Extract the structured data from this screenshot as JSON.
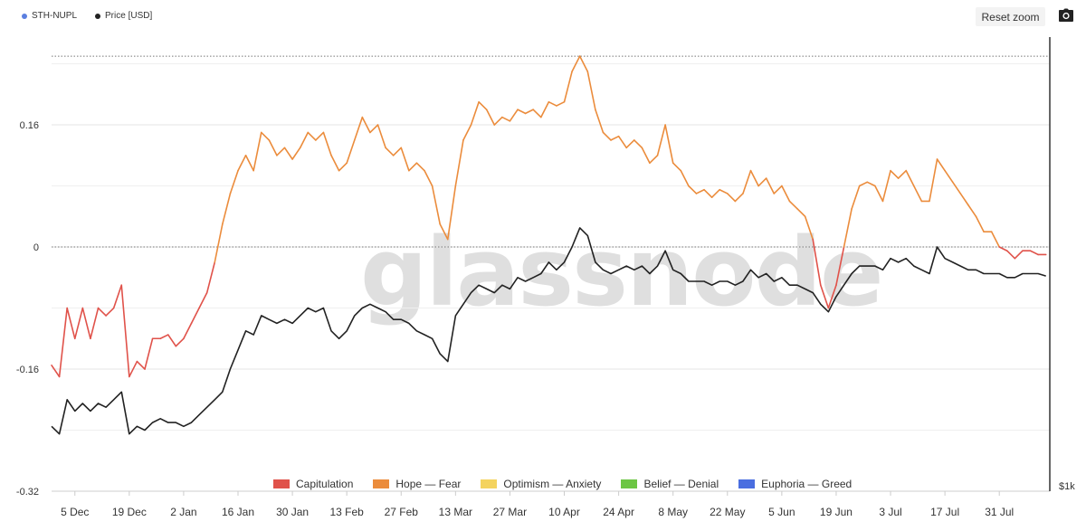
{
  "legend": [
    {
      "label": "STH-NUPL",
      "color": "#5b7fe0"
    },
    {
      "label": "Price [USD]",
      "color": "#222222"
    }
  ],
  "toolbar": {
    "reset_label": "Reset zoom",
    "camera_icon": "camera-icon"
  },
  "watermark": "glassnode",
  "chart_data": {
    "type": "line",
    "y_left": {
      "ticks": [
        "0.16",
        "0",
        "-0.16",
        "-0.32"
      ],
      "tick_values": [
        0.16,
        0,
        -0.16,
        -0.32
      ],
      "range": [
        -0.32,
        0.275
      ]
    },
    "y_right": {
      "ticks": [
        "$1k"
      ]
    },
    "x_ticks": [
      "5 Dec",
      "19 Dec",
      "2 Jan",
      "16 Jan",
      "30 Jan",
      "13 Feb",
      "27 Feb",
      "13 Mar",
      "27 Mar",
      "10 Apr",
      "24 Apr",
      "8 May",
      "22 May",
      "5 Jun",
      "19 Jun",
      "3 Jul",
      "17 Jul",
      "31 Jul"
    ],
    "x_start": "2022-11-29",
    "x_end": "2023-08-13",
    "grid": true,
    "phases": [
      {
        "name": "Capitulation",
        "color": "#e0524a"
      },
      {
        "name": "Hope — Fear",
        "color": "#eb8c3c"
      },
      {
        "name": "Optimism — Anxiety",
        "color": "#f4d35e"
      },
      {
        "name": "Belief — Denial",
        "color": "#6cc644"
      },
      {
        "name": "Euphoria — Greed",
        "color": "#4a6ee0"
      }
    ],
    "series": [
      {
        "name": "STH-NUPL",
        "values": [
          [
            "2022-11-29",
            -0.155
          ],
          [
            "2022-12-01",
            -0.17
          ],
          [
            "2022-12-03",
            -0.08
          ],
          [
            "2022-12-05",
            -0.12
          ],
          [
            "2022-12-07",
            -0.08
          ],
          [
            "2022-12-09",
            -0.12
          ],
          [
            "2022-12-11",
            -0.08
          ],
          [
            "2022-12-13",
            -0.09
          ],
          [
            "2022-12-15",
            -0.08
          ],
          [
            "2022-12-17",
            -0.05
          ],
          [
            "2022-12-19",
            -0.17
          ],
          [
            "2022-12-21",
            -0.15
          ],
          [
            "2022-12-23",
            -0.16
          ],
          [
            "2022-12-25",
            -0.12
          ],
          [
            "2022-12-27",
            -0.12
          ],
          [
            "2022-12-29",
            -0.115
          ],
          [
            "2022-12-31",
            -0.13
          ],
          [
            "2023-01-02",
            -0.12
          ],
          [
            "2023-01-04",
            -0.1
          ],
          [
            "2023-01-06",
            -0.08
          ],
          [
            "2023-01-08",
            -0.06
          ],
          [
            "2023-01-10",
            -0.02
          ],
          [
            "2023-01-12",
            0.03
          ],
          [
            "2023-01-14",
            0.07
          ],
          [
            "2023-01-16",
            0.1
          ],
          [
            "2023-01-18",
            0.12
          ],
          [
            "2023-01-20",
            0.1
          ],
          [
            "2023-01-22",
            0.15
          ],
          [
            "2023-01-24",
            0.14
          ],
          [
            "2023-01-26",
            0.12
          ],
          [
            "2023-01-28",
            0.13
          ],
          [
            "2023-01-30",
            0.115
          ],
          [
            "2023-02-01",
            0.13
          ],
          [
            "2023-02-03",
            0.15
          ],
          [
            "2023-02-05",
            0.14
          ],
          [
            "2023-02-07",
            0.15
          ],
          [
            "2023-02-09",
            0.12
          ],
          [
            "2023-02-11",
            0.1
          ],
          [
            "2023-02-13",
            0.11
          ],
          [
            "2023-02-15",
            0.14
          ],
          [
            "2023-02-17",
            0.17
          ],
          [
            "2023-02-19",
            0.15
          ],
          [
            "2023-02-21",
            0.16
          ],
          [
            "2023-02-23",
            0.13
          ],
          [
            "2023-02-25",
            0.12
          ],
          [
            "2023-02-27",
            0.13
          ],
          [
            "2023-03-01",
            0.1
          ],
          [
            "2023-03-03",
            0.11
          ],
          [
            "2023-03-05",
            0.1
          ],
          [
            "2023-03-07",
            0.08
          ],
          [
            "2023-03-09",
            0.03
          ],
          [
            "2023-03-11",
            0.01
          ],
          [
            "2023-03-13",
            0.08
          ],
          [
            "2023-03-15",
            0.14
          ],
          [
            "2023-03-17",
            0.16
          ],
          [
            "2023-03-19",
            0.19
          ],
          [
            "2023-03-21",
            0.18
          ],
          [
            "2023-03-23",
            0.16
          ],
          [
            "2023-03-25",
            0.17
          ],
          [
            "2023-03-27",
            0.165
          ],
          [
            "2023-03-29",
            0.18
          ],
          [
            "2023-03-31",
            0.175
          ],
          [
            "2023-04-02",
            0.18
          ],
          [
            "2023-04-04",
            0.17
          ],
          [
            "2023-04-06",
            0.19
          ],
          [
            "2023-04-08",
            0.185
          ],
          [
            "2023-04-10",
            0.19
          ],
          [
            "2023-04-12",
            0.23
          ],
          [
            "2023-04-14",
            0.25
          ],
          [
            "2023-04-16",
            0.23
          ],
          [
            "2023-04-18",
            0.18
          ],
          [
            "2023-04-20",
            0.15
          ],
          [
            "2023-04-22",
            0.14
          ],
          [
            "2023-04-24",
            0.145
          ],
          [
            "2023-04-26",
            0.13
          ],
          [
            "2023-04-28",
            0.14
          ],
          [
            "2023-04-30",
            0.13
          ],
          [
            "2023-05-02",
            0.11
          ],
          [
            "2023-05-04",
            0.12
          ],
          [
            "2023-05-06",
            0.16
          ],
          [
            "2023-05-08",
            0.11
          ],
          [
            "2023-05-10",
            0.1
          ],
          [
            "2023-05-12",
            0.08
          ],
          [
            "2023-05-14",
            0.07
          ],
          [
            "2023-05-16",
            0.075
          ],
          [
            "2023-05-18",
            0.065
          ],
          [
            "2023-05-20",
            0.075
          ],
          [
            "2023-05-22",
            0.07
          ],
          [
            "2023-05-24",
            0.06
          ],
          [
            "2023-05-26",
            0.07
          ],
          [
            "2023-05-28",
            0.1
          ],
          [
            "2023-05-30",
            0.08
          ],
          [
            "2023-06-01",
            0.09
          ],
          [
            "2023-06-03",
            0.07
          ],
          [
            "2023-06-05",
            0.08
          ],
          [
            "2023-06-07",
            0.06
          ],
          [
            "2023-06-09",
            0.05
          ],
          [
            "2023-06-11",
            0.04
          ],
          [
            "2023-06-13",
            0.01
          ],
          [
            "2023-06-15",
            -0.05
          ],
          [
            "2023-06-17",
            -0.08
          ],
          [
            "2023-06-19",
            -0.05
          ],
          [
            "2023-06-21",
            0.0
          ],
          [
            "2023-06-23",
            0.05
          ],
          [
            "2023-06-25",
            0.08
          ],
          [
            "2023-06-27",
            0.085
          ],
          [
            "2023-06-29",
            0.08
          ],
          [
            "2023-07-01",
            0.06
          ],
          [
            "2023-07-03",
            0.1
          ],
          [
            "2023-07-05",
            0.09
          ],
          [
            "2023-07-07",
            0.1
          ],
          [
            "2023-07-09",
            0.08
          ],
          [
            "2023-07-11",
            0.06
          ],
          [
            "2023-07-13",
            0.06
          ],
          [
            "2023-07-15",
            0.115
          ],
          [
            "2023-07-17",
            0.1
          ],
          [
            "2023-07-19",
            0.085
          ],
          [
            "2023-07-21",
            0.07
          ],
          [
            "2023-07-23",
            0.055
          ],
          [
            "2023-07-25",
            0.04
          ],
          [
            "2023-07-27",
            0.02
          ],
          [
            "2023-07-29",
            0.02
          ],
          [
            "2023-07-31",
            0.0
          ],
          [
            "2023-08-02",
            -0.005
          ],
          [
            "2023-08-04",
            -0.015
          ],
          [
            "2023-08-06",
            -0.005
          ],
          [
            "2023-08-08",
            -0.005
          ],
          [
            "2023-08-10",
            -0.01
          ],
          [
            "2023-08-12",
            -0.01
          ]
        ]
      },
      {
        "name": "Price [USD]",
        "values": [
          [
            "2022-11-29",
            -0.235
          ],
          [
            "2022-12-01",
            -0.245
          ],
          [
            "2022-12-03",
            -0.2
          ],
          [
            "2022-12-05",
            -0.215
          ],
          [
            "2022-12-07",
            -0.205
          ],
          [
            "2022-12-09",
            -0.215
          ],
          [
            "2022-12-11",
            -0.205
          ],
          [
            "2022-12-13",
            -0.21
          ],
          [
            "2022-12-15",
            -0.2
          ],
          [
            "2022-12-17",
            -0.19
          ],
          [
            "2022-12-19",
            -0.245
          ],
          [
            "2022-12-21",
            -0.235
          ],
          [
            "2022-12-23",
            -0.24
          ],
          [
            "2022-12-25",
            -0.23
          ],
          [
            "2022-12-27",
            -0.225
          ],
          [
            "2022-12-29",
            -0.23
          ],
          [
            "2022-12-31",
            -0.23
          ],
          [
            "2023-01-02",
            -0.235
          ],
          [
            "2023-01-04",
            -0.23
          ],
          [
            "2023-01-06",
            -0.22
          ],
          [
            "2023-01-08",
            -0.21
          ],
          [
            "2023-01-10",
            -0.2
          ],
          [
            "2023-01-12",
            -0.19
          ],
          [
            "2023-01-14",
            -0.16
          ],
          [
            "2023-01-16",
            -0.135
          ],
          [
            "2023-01-18",
            -0.11
          ],
          [
            "2023-01-20",
            -0.115
          ],
          [
            "2023-01-22",
            -0.09
          ],
          [
            "2023-01-24",
            -0.095
          ],
          [
            "2023-01-26",
            -0.1
          ],
          [
            "2023-01-28",
            -0.095
          ],
          [
            "2023-01-30",
            -0.1
          ],
          [
            "2023-02-01",
            -0.09
          ],
          [
            "2023-02-03",
            -0.08
          ],
          [
            "2023-02-05",
            -0.085
          ],
          [
            "2023-02-07",
            -0.08
          ],
          [
            "2023-02-09",
            -0.11
          ],
          [
            "2023-02-11",
            -0.12
          ],
          [
            "2023-02-13",
            -0.11
          ],
          [
            "2023-02-15",
            -0.09
          ],
          [
            "2023-02-17",
            -0.08
          ],
          [
            "2023-02-19",
            -0.075
          ],
          [
            "2023-02-21",
            -0.08
          ],
          [
            "2023-02-23",
            -0.085
          ],
          [
            "2023-02-25",
            -0.095
          ],
          [
            "2023-02-27",
            -0.095
          ],
          [
            "2023-03-01",
            -0.1
          ],
          [
            "2023-03-03",
            -0.11
          ],
          [
            "2023-03-05",
            -0.115
          ],
          [
            "2023-03-07",
            -0.12
          ],
          [
            "2023-03-09",
            -0.14
          ],
          [
            "2023-03-11",
            -0.15
          ],
          [
            "2023-03-13",
            -0.09
          ],
          [
            "2023-03-15",
            -0.075
          ],
          [
            "2023-03-17",
            -0.06
          ],
          [
            "2023-03-19",
            -0.05
          ],
          [
            "2023-03-21",
            -0.055
          ],
          [
            "2023-03-23",
            -0.06
          ],
          [
            "2023-03-25",
            -0.05
          ],
          [
            "2023-03-27",
            -0.055
          ],
          [
            "2023-03-29",
            -0.04
          ],
          [
            "2023-03-31",
            -0.045
          ],
          [
            "2023-04-02",
            -0.04
          ],
          [
            "2023-04-04",
            -0.035
          ],
          [
            "2023-04-06",
            -0.02
          ],
          [
            "2023-04-08",
            -0.03
          ],
          [
            "2023-04-10",
            -0.02
          ],
          [
            "2023-04-12",
            0.0
          ],
          [
            "2023-04-14",
            0.025
          ],
          [
            "2023-04-16",
            0.015
          ],
          [
            "2023-04-18",
            -0.02
          ],
          [
            "2023-04-20",
            -0.03
          ],
          [
            "2023-04-22",
            -0.035
          ],
          [
            "2023-04-24",
            -0.03
          ],
          [
            "2023-04-26",
            -0.025
          ],
          [
            "2023-04-28",
            -0.03
          ],
          [
            "2023-04-30",
            -0.025
          ],
          [
            "2023-05-02",
            -0.035
          ],
          [
            "2023-05-04",
            -0.025
          ],
          [
            "2023-05-06",
            -0.005
          ],
          [
            "2023-05-08",
            -0.03
          ],
          [
            "2023-05-10",
            -0.035
          ],
          [
            "2023-05-12",
            -0.045
          ],
          [
            "2023-05-14",
            -0.045
          ],
          [
            "2023-05-16",
            -0.045
          ],
          [
            "2023-05-18",
            -0.05
          ],
          [
            "2023-05-20",
            -0.045
          ],
          [
            "2023-05-22",
            -0.045
          ],
          [
            "2023-05-24",
            -0.05
          ],
          [
            "2023-05-26",
            -0.045
          ],
          [
            "2023-05-28",
            -0.03
          ],
          [
            "2023-05-30",
            -0.04
          ],
          [
            "2023-06-01",
            -0.035
          ],
          [
            "2023-06-03",
            -0.045
          ],
          [
            "2023-06-05",
            -0.04
          ],
          [
            "2023-06-07",
            -0.05
          ],
          [
            "2023-06-09",
            -0.05
          ],
          [
            "2023-06-11",
            -0.055
          ],
          [
            "2023-06-13",
            -0.06
          ],
          [
            "2023-06-15",
            -0.075
          ],
          [
            "2023-06-17",
            -0.085
          ],
          [
            "2023-06-19",
            -0.065
          ],
          [
            "2023-06-21",
            -0.05
          ],
          [
            "2023-06-23",
            -0.035
          ],
          [
            "2023-06-25",
            -0.025
          ],
          [
            "2023-06-27",
            -0.025
          ],
          [
            "2023-06-29",
            -0.025
          ],
          [
            "2023-07-01",
            -0.03
          ],
          [
            "2023-07-03",
            -0.015
          ],
          [
            "2023-07-05",
            -0.02
          ],
          [
            "2023-07-07",
            -0.015
          ],
          [
            "2023-07-09",
            -0.025
          ],
          [
            "2023-07-11",
            -0.03
          ],
          [
            "2023-07-13",
            -0.035
          ],
          [
            "2023-07-15",
            0.0
          ],
          [
            "2023-07-17",
            -0.015
          ],
          [
            "2023-07-19",
            -0.02
          ],
          [
            "2023-07-21",
            -0.025
          ],
          [
            "2023-07-23",
            -0.03
          ],
          [
            "2023-07-25",
            -0.03
          ],
          [
            "2023-07-27",
            -0.035
          ],
          [
            "2023-07-29",
            -0.035
          ],
          [
            "2023-07-31",
            -0.035
          ],
          [
            "2023-08-02",
            -0.04
          ],
          [
            "2023-08-04",
            -0.04
          ],
          [
            "2023-08-06",
            -0.035
          ],
          [
            "2023-08-08",
            -0.035
          ],
          [
            "2023-08-10",
            -0.035
          ],
          [
            "2023-08-12",
            -0.038
          ]
        ]
      }
    ]
  }
}
